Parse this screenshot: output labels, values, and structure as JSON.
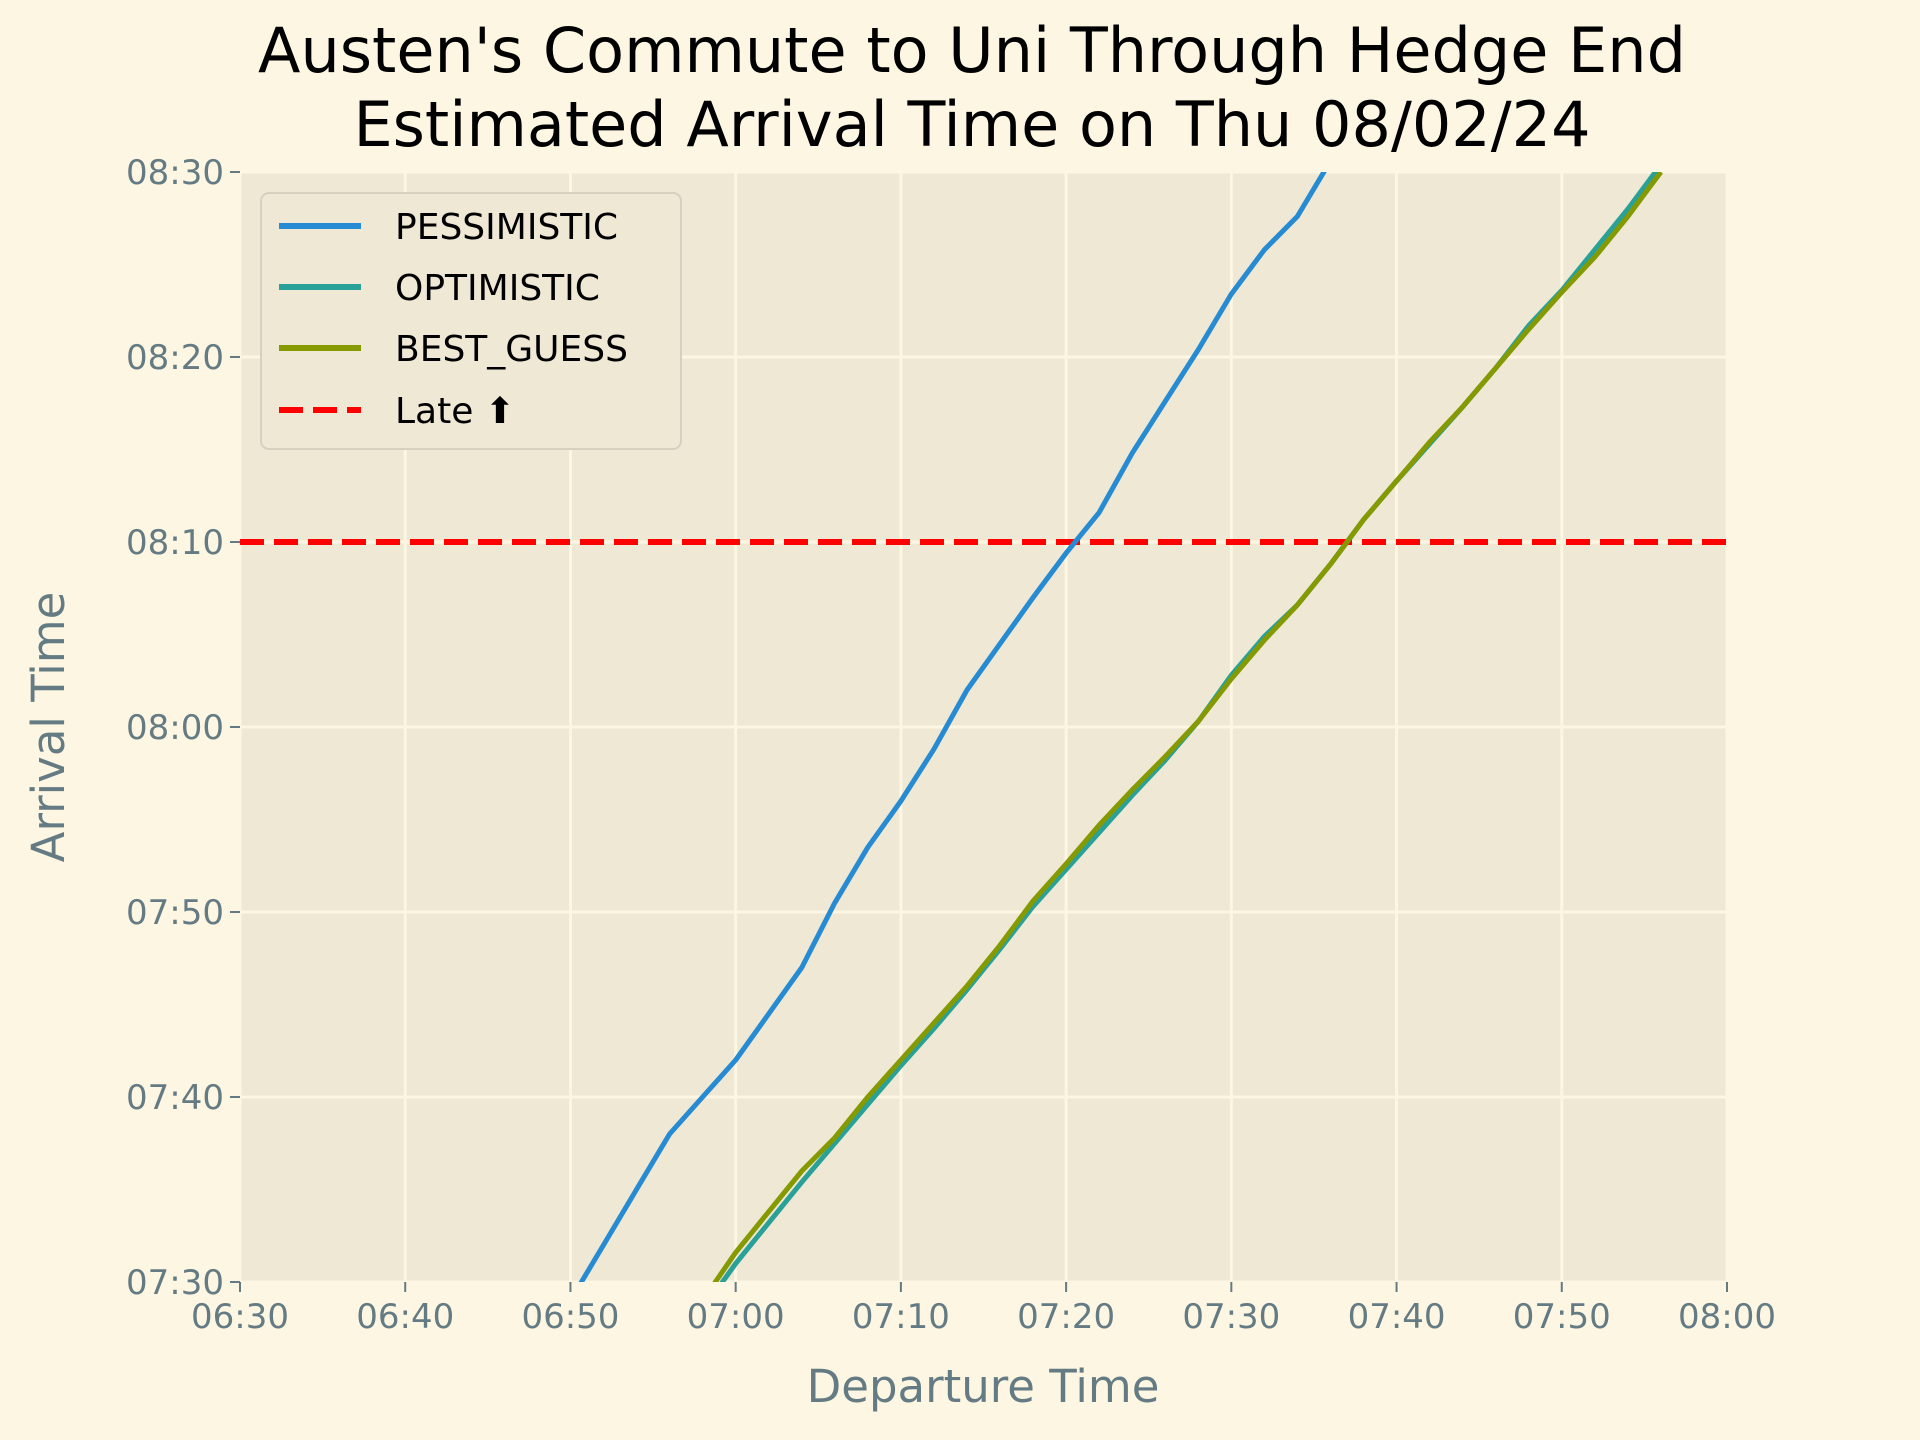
{
  "chart_data": {
    "type": "line",
    "title_line1": "Austen's Commute to Uni Through Hedge End",
    "title_line2": "Estimated Arrival Time on Thu 08/02/24",
    "xlabel": "Departure Time",
    "ylabel": "Arrival Time",
    "xlim": [
      "06:30",
      "08:00"
    ],
    "ylim": [
      "07:30",
      "08:30"
    ],
    "x_ticks": [
      "06:30",
      "06:40",
      "06:50",
      "07:00",
      "07:10",
      "07:20",
      "07:30",
      "07:40",
      "07:50",
      "08:00"
    ],
    "y_ticks": [
      "07:30",
      "07:40",
      "07:50",
      "08:00",
      "08:10",
      "08:20",
      "08:30"
    ],
    "grid": true,
    "legend_position": "top-left",
    "late_line": {
      "name": "Late ⬆",
      "y": "08:10",
      "color": "#ff0000",
      "style": "dashed"
    },
    "series": [
      {
        "name": "PESSIMISTIC",
        "color": "#268bd2",
        "points": [
          [
            "06:50",
            "07:29"
          ],
          [
            "06:52",
            "07:32"
          ],
          [
            "06:54",
            "07:35"
          ],
          [
            "06:56",
            "07:38"
          ],
          [
            "06:58",
            "07:40"
          ],
          [
            "07:00",
            "07:42"
          ],
          [
            "07:02",
            "07:44.5"
          ],
          [
            "07:04",
            "07:47"
          ],
          [
            "07:06",
            "07:50.5"
          ],
          [
            "07:08",
            "07:53.5"
          ],
          [
            "07:10",
            "07:56"
          ],
          [
            "07:12",
            "07:58.8"
          ],
          [
            "07:14",
            "08:02"
          ],
          [
            "07:16",
            "08:04.5"
          ],
          [
            "07:18",
            "08:07"
          ],
          [
            "07:20",
            "08:09.4"
          ],
          [
            "07:22",
            "08:11.6"
          ],
          [
            "07:24",
            "08:14.8"
          ],
          [
            "07:26",
            "08:17.6"
          ],
          [
            "07:28",
            "08:20.4"
          ],
          [
            "07:30",
            "08:23.4"
          ],
          [
            "07:32",
            "08:25.8"
          ],
          [
            "07:34",
            "08:27.6"
          ],
          [
            "07:36",
            "08:30.6"
          ]
        ]
      },
      {
        "name": "OPTIMISTIC",
        "color": "#2aa198",
        "points": [
          [
            "06:58",
            "07:28.5"
          ],
          [
            "07:00",
            "07:31"
          ],
          [
            "07:02",
            "07:33.2"
          ],
          [
            "07:04",
            "07:35.4"
          ],
          [
            "07:06",
            "07:37.5"
          ],
          [
            "07:08",
            "07:39.6"
          ],
          [
            "07:10",
            "07:41.7"
          ],
          [
            "07:12",
            "07:43.7"
          ],
          [
            "07:14",
            "07:45.8"
          ],
          [
            "07:16",
            "07:48"
          ],
          [
            "07:18",
            "07:50.3"
          ],
          [
            "07:20",
            "07:52.3"
          ],
          [
            "07:22",
            "07:54.3"
          ],
          [
            "07:24",
            "07:56.3"
          ],
          [
            "07:26",
            "07:58.2"
          ],
          [
            "07:28",
            "08:00.3"
          ],
          [
            "07:30",
            "08:02.8"
          ],
          [
            "07:32",
            "08:04.9"
          ],
          [
            "07:34",
            "08:06.6"
          ],
          [
            "07:36",
            "08:08.8"
          ],
          [
            "07:38",
            "08:11.2"
          ],
          [
            "07:40",
            "08:13.3"
          ],
          [
            "07:42",
            "08:15.3"
          ],
          [
            "07:44",
            "08:17.3"
          ],
          [
            "07:46",
            "08:19.4"
          ],
          [
            "07:48",
            "08:21.7"
          ],
          [
            "07:50",
            "08:23.6"
          ],
          [
            "07:52",
            "08:25.8"
          ],
          [
            "07:54",
            "08:28"
          ],
          [
            "07:56",
            "08:30.4"
          ]
        ]
      },
      {
        "name": "BEST_GUESS",
        "color": "#859900",
        "points": [
          [
            "06:58",
            "07:29"
          ],
          [
            "07:00",
            "07:31.6"
          ],
          [
            "07:02",
            "07:33.8"
          ],
          [
            "07:04",
            "07:36"
          ],
          [
            "07:06",
            "07:37.8"
          ],
          [
            "07:08",
            "07:40"
          ],
          [
            "07:10",
            "07:42"
          ],
          [
            "07:12",
            "07:44"
          ],
          [
            "07:14",
            "07:46"
          ],
          [
            "07:16",
            "07:48.2"
          ],
          [
            "07:18",
            "07:50.6"
          ],
          [
            "07:20",
            "07:52.6"
          ],
          [
            "07:22",
            "07:54.7"
          ],
          [
            "07:24",
            "07:56.6"
          ],
          [
            "07:26",
            "07:58.4"
          ],
          [
            "07:28",
            "08:00.3"
          ],
          [
            "07:30",
            "08:02.6"
          ],
          [
            "07:32",
            "08:04.7"
          ],
          [
            "07:34",
            "08:06.6"
          ],
          [
            "07:36",
            "08:08.8"
          ],
          [
            "07:38",
            "08:11.2"
          ],
          [
            "07:40",
            "08:13.3"
          ],
          [
            "07:42",
            "08:15.4"
          ],
          [
            "07:44",
            "08:17.3"
          ],
          [
            "07:46",
            "08:19.4"
          ],
          [
            "07:48",
            "08:21.5"
          ],
          [
            "07:50",
            "08:23.5"
          ],
          [
            "07:52",
            "08:25.4"
          ],
          [
            "07:54",
            "08:27.6"
          ],
          [
            "07:56",
            "08:30"
          ]
        ]
      }
    ]
  }
}
